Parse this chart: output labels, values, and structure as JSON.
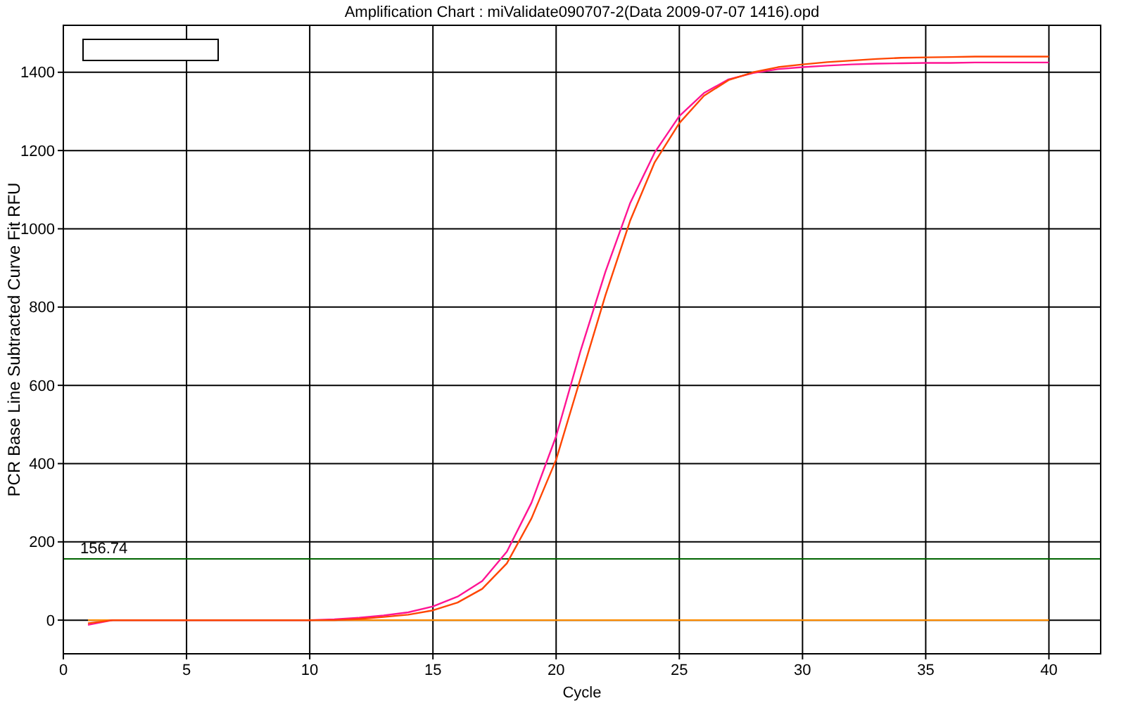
{
  "chart_data": {
    "type": "line",
    "title": "Amplification Chart : miValidate090707-2(Data 2009-07-07 1416).opd",
    "xlabel": "Cycle",
    "ylabel": "PCR Base Line Subtracted Curve Fit RFU",
    "xlim": [
      0,
      42.1
    ],
    "ylim": [
      -86,
      1520
    ],
    "xticks": [
      0,
      5,
      10,
      15,
      20,
      25,
      30,
      35,
      40
    ],
    "yticks": [
      0,
      200,
      400,
      600,
      800,
      1000,
      1200,
      1400
    ],
    "grid": true,
    "line_style": "solid",
    "ref_lines": [
      {
        "axis": "y",
        "value": 156.74,
        "label": "156.74",
        "color": "#006400"
      }
    ],
    "series": [
      {
        "color": "#ff8c00",
        "x": [
          1,
          40
        ],
        "values": [
          0,
          0
        ]
      },
      {
        "color": "#ff1493",
        "x": [
          1,
          2,
          3,
          4,
          5,
          6,
          7,
          8,
          9,
          10,
          11,
          12,
          13,
          14,
          15,
          16,
          17,
          18,
          19,
          20,
          21,
          22,
          23,
          24,
          25,
          26,
          27,
          28,
          29,
          30,
          31,
          32,
          33,
          34,
          35,
          36,
          37,
          38,
          39,
          40
        ],
        "values": [
          -12,
          0,
          0,
          0,
          0,
          0,
          0,
          0,
          0,
          0,
          2,
          6,
          12,
          20,
          35,
          60,
          100,
          175,
          300,
          470,
          690,
          890,
          1065,
          1195,
          1288,
          1347,
          1382,
          1398,
          1408,
          1413,
          1417,
          1420,
          1422,
          1423,
          1424,
          1424,
          1425,
          1425,
          1425,
          1425
        ]
      },
      {
        "color": "#ff4500",
        "x": [
          1,
          2,
          3,
          4,
          5,
          6,
          7,
          8,
          9,
          10,
          11,
          12,
          13,
          14,
          15,
          16,
          17,
          18,
          19,
          20,
          21,
          22,
          23,
          24,
          25,
          26,
          27,
          28,
          29,
          30,
          31,
          32,
          33,
          34,
          35,
          36,
          37,
          38,
          39,
          40
        ],
        "values": [
          -8,
          0,
          0,
          0,
          0,
          0,
          0,
          0,
          0,
          0,
          0,
          3,
          8,
          14,
          25,
          45,
          80,
          145,
          260,
          410,
          620,
          830,
          1020,
          1170,
          1270,
          1340,
          1380,
          1400,
          1413,
          1420,
          1426,
          1430,
          1434,
          1437,
          1438,
          1439,
          1440,
          1440,
          1440,
          1440
        ]
      }
    ]
  }
}
